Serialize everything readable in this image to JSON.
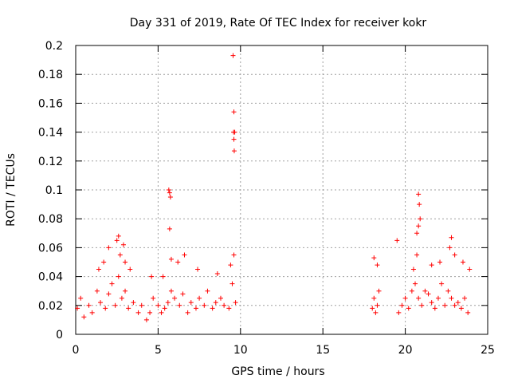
{
  "chart_data": {
    "type": "scatter",
    "title": "Day 331 of 2019, Rate Of TEC Index for receiver kokr",
    "xlabel": "GPS time / hours",
    "ylabel": "ROTI / TECUs",
    "xlim": [
      0,
      25
    ],
    "ylim": [
      0,
      0.2
    ],
    "xticks": [
      0,
      5,
      10,
      15,
      20,
      25
    ],
    "yticks": [
      0,
      0.02,
      0.04,
      0.06,
      0.08,
      0.1,
      0.12,
      0.14,
      0.16,
      0.18,
      0.2
    ],
    "xtick_labels": [
      "0",
      "5",
      "10",
      "15",
      "20",
      "25"
    ],
    "ytick_labels": [
      "0",
      "0.02",
      "0.04",
      "0.06",
      "0.08",
      "0.1",
      "0.12",
      "0.14",
      "0.16",
      "0.18",
      "0.2"
    ],
    "grid": true,
    "marker": "+",
    "marker_color": "#ff0000",
    "series": [
      {
        "name": "ROTI",
        "x": [
          0.1,
          0.3,
          0.5,
          0.8,
          1.0,
          1.3,
          1.5,
          1.8,
          2.0,
          2.2,
          2.4,
          2.6,
          2.8,
          3.0,
          3.2,
          3.5,
          3.8,
          4.0,
          4.3,
          4.5,
          4.7,
          5.0,
          5.2,
          5.4,
          5.6,
          5.8,
          6.0,
          6.3,
          6.5,
          6.8,
          7.0,
          7.3,
          7.5,
          7.8,
          8.0,
          8.3,
          8.5,
          8.8,
          9.0,
          9.3,
          9.5,
          9.7,
          2.0,
          2.5,
          2.6,
          2.7,
          2.9,
          3.0,
          1.4,
          1.7,
          3.3,
          4.6,
          5.3,
          6.2,
          6.6,
          7.4,
          8.6,
          9.4,
          9.6,
          5.65,
          5.7,
          5.75,
          5.7,
          5.8,
          9.55,
          9.6,
          9.65,
          9.6,
          9.62,
          9.58,
          18.0,
          18.1,
          18.2,
          18.3,
          18.4,
          19.6,
          19.8,
          20.0,
          20.2,
          20.4,
          20.6,
          20.8,
          21.0,
          21.2,
          21.4,
          21.6,
          21.8,
          22.0,
          22.2,
          22.4,
          22.6,
          22.8,
          23.0,
          23.2,
          23.4,
          23.6,
          23.8,
          18.1,
          18.3,
          19.5,
          20.5,
          20.7,
          21.6,
          22.1,
          22.7,
          22.8,
          23.0,
          23.5,
          23.9,
          20.8,
          20.85,
          20.9,
          20.8,
          20.7
        ],
        "y": [
          0.018,
          0.025,
          0.012,
          0.02,
          0.015,
          0.03,
          0.022,
          0.018,
          0.028,
          0.035,
          0.02,
          0.04,
          0.025,
          0.03,
          0.018,
          0.022,
          0.015,
          0.02,
          0.01,
          0.015,
          0.025,
          0.02,
          0.015,
          0.018,
          0.022,
          0.03,
          0.025,
          0.02,
          0.028,
          0.015,
          0.022,
          0.018,
          0.025,
          0.02,
          0.03,
          0.018,
          0.022,
          0.025,
          0.02,
          0.018,
          0.035,
          0.022,
          0.06,
          0.065,
          0.068,
          0.055,
          0.062,
          0.05,
          0.045,
          0.05,
          0.045,
          0.04,
          0.04,
          0.05,
          0.055,
          0.045,
          0.042,
          0.048,
          0.055,
          0.1,
          0.098,
          0.095,
          0.073,
          0.052,
          0.193,
          0.154,
          0.14,
          0.135,
          0.127,
          0.14,
          0.018,
          0.025,
          0.015,
          0.02,
          0.03,
          0.015,
          0.02,
          0.025,
          0.018,
          0.03,
          0.035,
          0.025,
          0.02,
          0.03,
          0.028,
          0.022,
          0.018,
          0.025,
          0.035,
          0.02,
          0.03,
          0.025,
          0.02,
          0.022,
          0.018,
          0.025,
          0.015,
          0.053,
          0.048,
          0.065,
          0.045,
          0.055,
          0.048,
          0.05,
          0.06,
          0.067,
          0.055,
          0.05,
          0.045,
          0.097,
          0.09,
          0.08,
          0.075,
          0.07
        ]
      }
    ]
  }
}
